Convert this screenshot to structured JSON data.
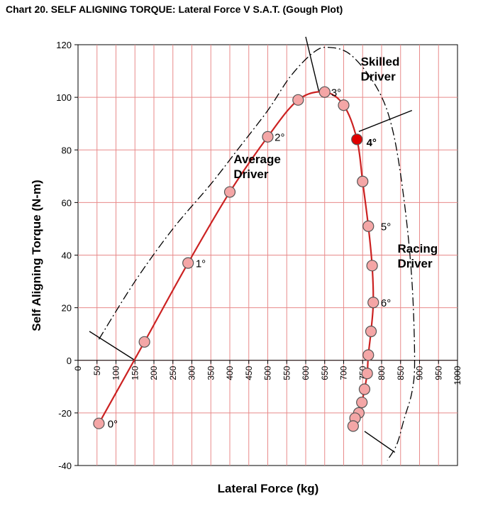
{
  "chart_data": {
    "type": "scatter",
    "title": "Chart 20. SELF ALIGNING TORQUE: Lateral Force V S.A.T. (Gough Plot)",
    "xlabel": "Lateral Force (kg)",
    "ylabel": "Self Aligning Torque (N-m)",
    "xlim": [
      0,
      1000
    ],
    "ylim": [
      -40,
      120
    ],
    "xticks": [
      0,
      50,
      100,
      150,
      200,
      250,
      300,
      350,
      400,
      450,
      500,
      550,
      600,
      650,
      700,
      750,
      800,
      850,
      900,
      950,
      1000
    ],
    "yticks": [
      -40,
      -20,
      0,
      20,
      40,
      60,
      80,
      100,
      120
    ],
    "grid": true,
    "colors": {
      "curve": "#cc2222",
      "marker_fill": "#f4a6a6",
      "marker_stroke": "#555555",
      "highlight_fill": "#e00000",
      "gridline": "#e88a8a",
      "envelope": "#000000"
    },
    "series": [
      {
        "x": [
          55,
          175,
          290,
          400,
          500,
          580,
          650,
          700,
          735,
          750,
          765,
          775,
          778,
          772,
          765,
          762,
          755,
          748,
          740,
          730,
          725
        ],
        "y": [
          -24,
          7,
          37,
          64,
          85,
          99,
          102,
          97,
          84,
          68,
          51,
          36,
          22,
          11,
          2,
          -5,
          -11,
          -16,
          -20,
          -22,
          -25
        ]
      }
    ],
    "highlight": {
      "x": 735,
      "y": 84
    },
    "envelope_points": [
      [
        55,
        8
      ],
      [
        150,
        30
      ],
      [
        250,
        50
      ],
      [
        350,
        67
      ],
      [
        420,
        80
      ],
      [
        500,
        95
      ],
      [
        560,
        108
      ],
      [
        620,
        117
      ],
      [
        660,
        119
      ],
      [
        720,
        116
      ],
      [
        790,
        103
      ],
      [
        830,
        87
      ],
      [
        860,
        60
      ],
      [
        880,
        30
      ],
      [
        887,
        0
      ],
      [
        880,
        -12
      ],
      [
        860,
        -22
      ],
      [
        840,
        -32
      ],
      [
        815,
        -38
      ]
    ],
    "lines": [
      {
        "x": [
          30,
          150
        ],
        "y": [
          11,
          0
        ]
      },
      {
        "x": [
          600,
          635
        ],
        "y": [
          123,
          102
        ]
      },
      {
        "x": [
          740,
          880
        ],
        "y": [
          87,
          95
        ]
      },
      {
        "x": [
          755,
          835
        ],
        "y": [
          -27,
          -35
        ]
      }
    ],
    "angle_labels": [
      {
        "text": "0°",
        "x": 78,
        "y": -24
      },
      {
        "text": "1°",
        "x": 310,
        "y": 37
      },
      {
        "text": "2°",
        "x": 518,
        "y": 85
      },
      {
        "text": "3°",
        "x": 667,
        "y": 102
      },
      {
        "text": "4°",
        "x": 760,
        "y": 83,
        "bold": true
      },
      {
        "text": "5°",
        "x": 798,
        "y": 51
      },
      {
        "text": "6°",
        "x": 798,
        "y": 22
      }
    ],
    "annotations": [
      {
        "line1": "Average",
        "line2": "Driver",
        "x": 410,
        "y": 75
      },
      {
        "line1": "Skilled",
        "line2": "Driver",
        "x": 745,
        "y": 112
      },
      {
        "line1": "Racing",
        "line2": "Driver",
        "x": 842,
        "y": 41
      }
    ]
  }
}
